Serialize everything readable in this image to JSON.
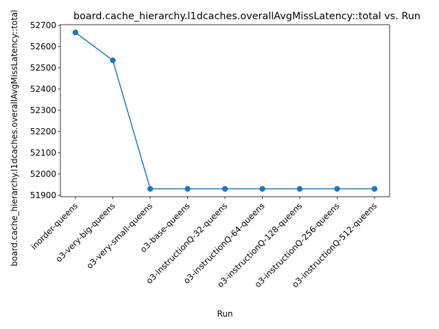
{
  "chart_data": {
    "type": "line",
    "title": "board.cache_hierarchy.l1dcaches.overallAvgMissLatency::total vs. Run",
    "xlabel": "Run",
    "ylabel": "board.cache_hierarchy.l1dcaches.overallAvgMissLatency::total",
    "categories": [
      "inorder-queens",
      "o3-very-big-queens",
      "o3-very-small-queens",
      "o3-base-queens",
      "o3-instructionQ-32-queens",
      "o3-instructionQ-64-queens",
      "o3-instructionQ-128-queens",
      "o3-instructionQ-256-queens",
      "o3-instructionQ-512-queens"
    ],
    "series": [
      {
        "values": [
          52666,
          52535,
          51930,
          51930,
          51930,
          51930,
          51930,
          51930,
          51930
        ],
        "color": "#1f77b4"
      }
    ],
    "ylim": [
      51893,
      52703
    ],
    "yticks": [
      51900,
      52000,
      52100,
      52200,
      52300,
      52400,
      52500,
      52600,
      52700
    ],
    "grid": false,
    "marker": "circle"
  }
}
